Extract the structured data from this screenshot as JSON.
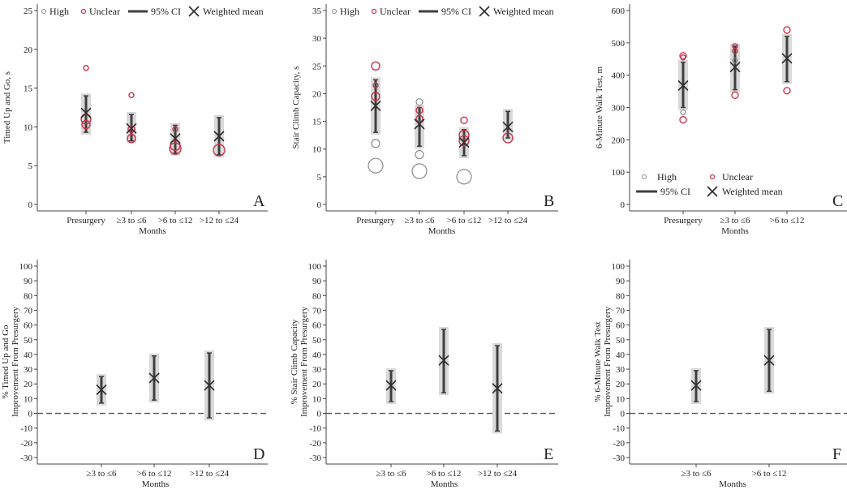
{
  "colors": {
    "high": "#8a8a8a",
    "unclear": "#c8334a",
    "ci": "#3f3f3f",
    "band": "#d9d9d9",
    "mean": "#2b2b2b",
    "zero_line": "#555555"
  },
  "legend": {
    "high": "High",
    "unclear": "Unclear",
    "ci": "95% CI",
    "mean": "Weighted mean"
  },
  "xlabel": "Months",
  "chart_data": [
    {
      "id": "A",
      "type": "scatter",
      "panel_label": "A",
      "ylabel": "Timed Up and Go, s",
      "categories": [
        "Presurgery",
        "≥3 to ≤6",
        ">6 to ≤12",
        ">12 to ≤24"
      ],
      "ylim": [
        0,
        25
      ],
      "yticks": [
        0,
        5,
        10,
        15,
        20,
        25
      ],
      "legend_position": "top",
      "ci": [
        {
          "x": 0,
          "mean": 11.8,
          "lo": 9.3,
          "hi": 14.0
        },
        {
          "x": 1,
          "mean": 9.8,
          "lo": 8.2,
          "hi": 11.6
        },
        {
          "x": 2,
          "mean": 8.5,
          "lo": 6.6,
          "hi": 10.2
        },
        {
          "x": 3,
          "mean": 8.8,
          "lo": 6.4,
          "hi": 11.2
        }
      ],
      "high": [],
      "unclear": [
        {
          "x": 0,
          "y": 17.6,
          "size": 3
        },
        {
          "x": 0,
          "y": 11.0,
          "size": 6
        },
        {
          "x": 0,
          "y": 10.3,
          "size": 5
        },
        {
          "x": 1,
          "y": 14.1,
          "size": 3
        },
        {
          "x": 1,
          "y": 9.7,
          "size": 4
        },
        {
          "x": 1,
          "y": 8.5,
          "size": 5
        },
        {
          "x": 2,
          "y": 9.7,
          "size": 3
        },
        {
          "x": 2,
          "y": 7.6,
          "size": 6
        },
        {
          "x": 2,
          "y": 7.2,
          "size": 7
        },
        {
          "x": 3,
          "y": 7.0,
          "size": 7
        }
      ]
    },
    {
      "id": "B",
      "type": "scatter",
      "panel_label": "B",
      "ylabel": "Stair Climb Capacity, s",
      "categories": [
        "Presurgery",
        "≥3 to ≤6",
        ">6 to ≤12",
        ">12 to ≤24"
      ],
      "ylim": [
        0,
        35
      ],
      "yticks": [
        0,
        5,
        10,
        15,
        20,
        25,
        30,
        35
      ],
      "legend_position": "top",
      "ci": [
        {
          "x": 0,
          "mean": 17.8,
          "lo": 13.0,
          "hi": 22.5
        },
        {
          "x": 1,
          "mean": 14.5,
          "lo": 10.5,
          "hi": 17.5
        },
        {
          "x": 2,
          "mean": 11.2,
          "lo": 8.8,
          "hi": 13.5
        },
        {
          "x": 3,
          "mean": 14.0,
          "lo": 12.0,
          "hi": 16.8
        }
      ],
      "high": [
        {
          "x": 0,
          "y": 11.0,
          "size": 5
        },
        {
          "x": 0,
          "y": 7.0,
          "size": 9
        },
        {
          "x": 1,
          "y": 18.5,
          "size": 4
        },
        {
          "x": 1,
          "y": 9.0,
          "size": 5
        },
        {
          "x": 1,
          "y": 6.0,
          "size": 9
        },
        {
          "x": 2,
          "y": 5.0,
          "size": 9
        }
      ],
      "unclear": [
        {
          "x": 0,
          "y": 25.0,
          "size": 5
        },
        {
          "x": 0,
          "y": 21.5,
          "size": 3
        },
        {
          "x": 0,
          "y": 19.5,
          "size": 5
        },
        {
          "x": 1,
          "y": 17.0,
          "size": 4
        },
        {
          "x": 1,
          "y": 15.5,
          "size": 4
        },
        {
          "x": 2,
          "y": 15.2,
          "size": 4
        },
        {
          "x": 2,
          "y": 12.5,
          "size": 6
        },
        {
          "x": 2,
          "y": 11.5,
          "size": 6
        },
        {
          "x": 3,
          "y": 12.0,
          "size": 6
        }
      ]
    },
    {
      "id": "C",
      "type": "scatter",
      "panel_label": "C",
      "ylabel": "6-Minute Walk Test, m",
      "categories": [
        "Presurgery",
        "≥3 to ≤6",
        ">6 to ≤12"
      ],
      "ylim": [
        0,
        600
      ],
      "yticks": [
        0,
        100,
        200,
        300,
        400,
        500,
        600
      ],
      "legend_position": "bottom",
      "ci": [
        {
          "x": 0,
          "mean": 368,
          "lo": 300,
          "hi": 440
        },
        {
          "x": 1,
          "mean": 425,
          "lo": 355,
          "hi": 490
        },
        {
          "x": 2,
          "mean": 452,
          "lo": 380,
          "hi": 520
        }
      ],
      "high": [
        {
          "x": 0,
          "y": 285,
          "size": 3
        },
        {
          "x": 1,
          "y": 445,
          "size": 3
        }
      ],
      "unclear": [
        {
          "x": 0,
          "y": 460,
          "size": 4
        },
        {
          "x": 0,
          "y": 455,
          "size": 3
        },
        {
          "x": 0,
          "y": 262,
          "size": 4
        },
        {
          "x": 1,
          "y": 490,
          "size": 3
        },
        {
          "x": 1,
          "y": 475,
          "size": 3
        },
        {
          "x": 1,
          "y": 338,
          "size": 4
        },
        {
          "x": 2,
          "y": 540,
          "size": 4
        },
        {
          "x": 2,
          "y": 352,
          "size": 4
        }
      ]
    },
    {
      "id": "D",
      "type": "scatter",
      "panel_label": "D",
      "ylabel": [
        "% Timed Up and Go",
        "Improvement From Presurgery"
      ],
      "categories": [
        "≥3 to ≤6",
        ">6 to ≤12",
        ">12 to ≤24"
      ],
      "ylim": [
        -30,
        100
      ],
      "yticks": [
        -30,
        -20,
        -10,
        0,
        10,
        20,
        30,
        40,
        50,
        60,
        70,
        80,
        90,
        100
      ],
      "ci": [
        {
          "x": 0,
          "mean": 16,
          "lo": 7,
          "hi": 25
        },
        {
          "x": 1,
          "mean": 24,
          "lo": 9,
          "hi": 39
        },
        {
          "x": 2,
          "mean": 19,
          "lo": -3,
          "hi": 41
        }
      ]
    },
    {
      "id": "E",
      "type": "scatter",
      "panel_label": "E",
      "ylabel": [
        "% Stair Climb Capacity",
        "Improvement From Presurgery"
      ],
      "categories": [
        "≥3 to ≤6",
        ">6 to ≤12",
        ">12 to ≤24"
      ],
      "ylim": [
        -30,
        100
      ],
      "yticks": [
        -30,
        -20,
        -10,
        0,
        10,
        20,
        30,
        40,
        50,
        60,
        70,
        80,
        90,
        100
      ],
      "ci": [
        {
          "x": 0,
          "mean": 19,
          "lo": 8,
          "hi": 29
        },
        {
          "x": 1,
          "mean": 36,
          "lo": 14,
          "hi": 57
        },
        {
          "x": 2,
          "mean": 17,
          "lo": -12,
          "hi": 46
        }
      ]
    },
    {
      "id": "F",
      "type": "scatter",
      "panel_label": "F",
      "ylabel": [
        "% 6-Minute Walk Test",
        "Improvement From Presurgery"
      ],
      "categories": [
        "≥3 to ≤6",
        ">6 to ≤12"
      ],
      "ylim": [
        -30,
        100
      ],
      "yticks": [
        -30,
        -20,
        -10,
        0,
        10,
        20,
        30,
        40,
        50,
        60,
        70,
        80,
        90,
        100
      ],
      "ci": [
        {
          "x": 0,
          "mean": 19,
          "lo": 8,
          "hi": 29
        },
        {
          "x": 1,
          "mean": 36,
          "lo": 15,
          "hi": 57
        }
      ]
    }
  ]
}
